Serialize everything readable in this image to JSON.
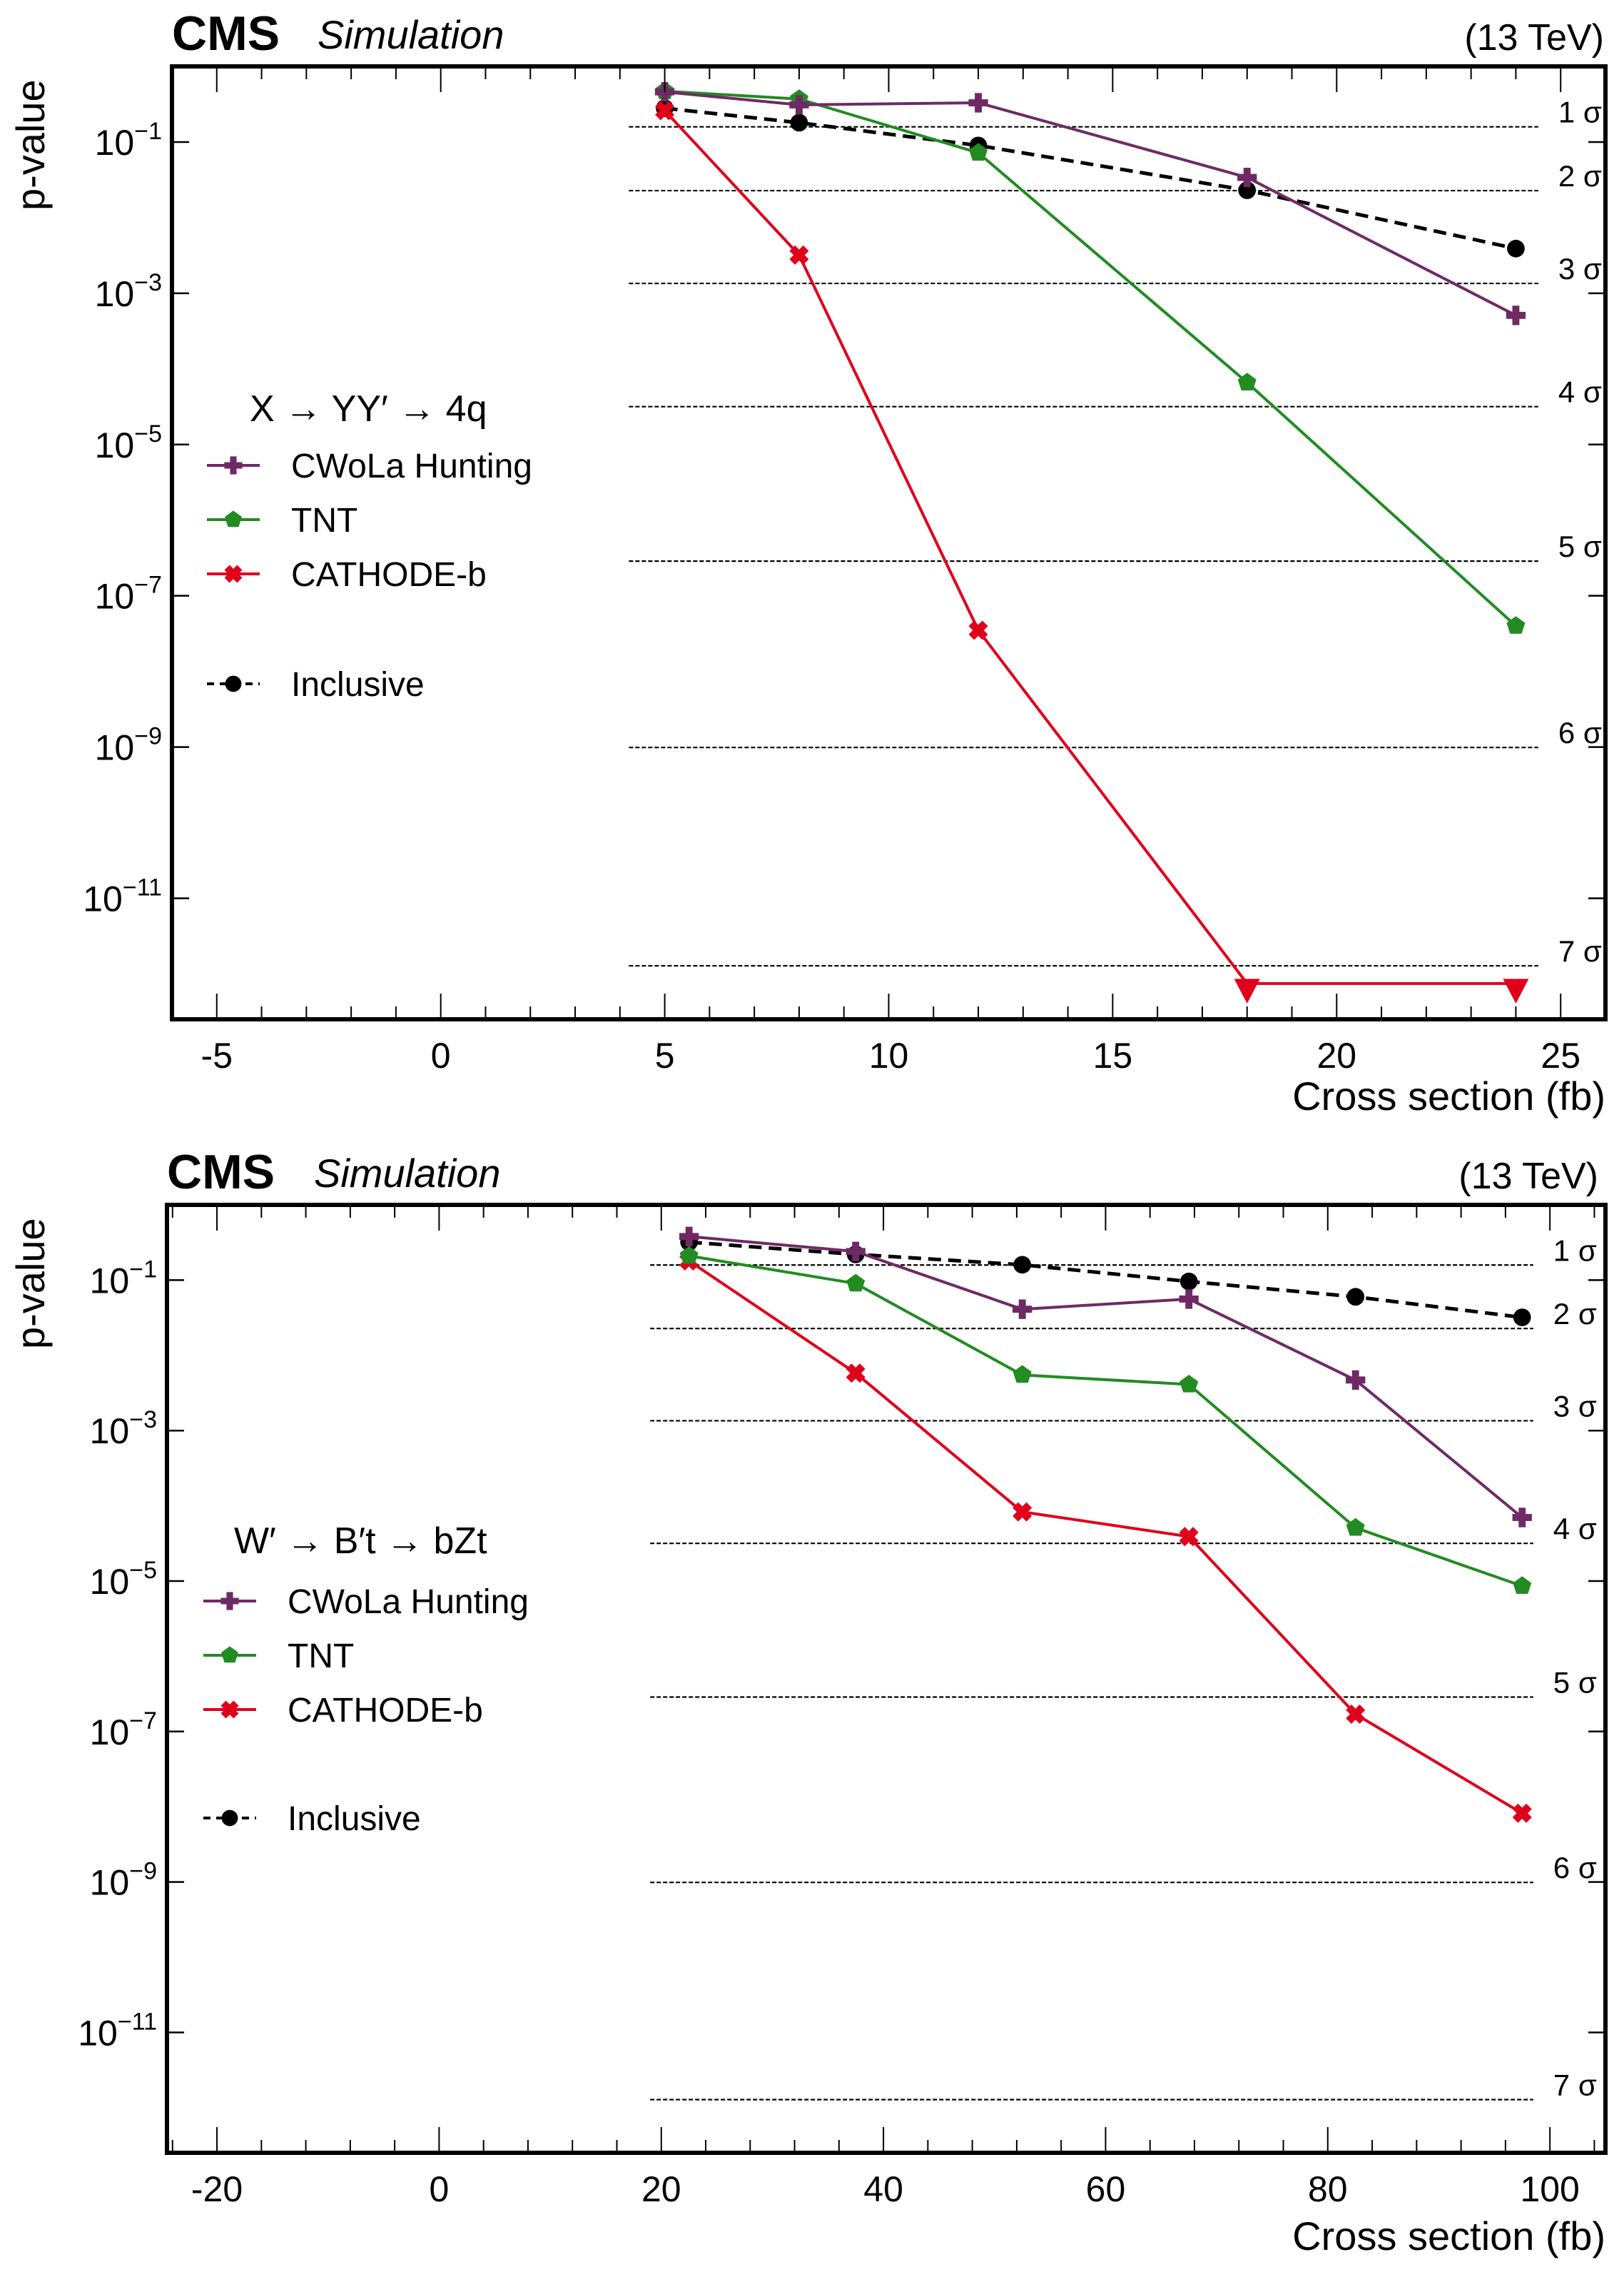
{
  "colors": {
    "cwola": "#6f2a65",
    "tnt": "#228b22",
    "cathode": "#e0001b",
    "inclusive": "#000000"
  },
  "chart_data": [
    {
      "type": "line",
      "header": {
        "experiment": "CMS",
        "label": "Simulation",
        "energy": "(13 TeV)"
      },
      "legend_title": "X → YY′ → 4q",
      "legend_placement": "center-left",
      "xlabel": "Cross section (fb)",
      "ylabel": "p-value",
      "yscale": "log",
      "xlim": [
        -6,
        26
      ],
      "ylim_log10": [
        -12.6,
        0.0
      ],
      "xticks": [
        -5,
        0,
        5,
        10,
        15,
        20,
        25
      ],
      "xtick_labels": [
        "-5",
        "0",
        "5",
        "10",
        "15",
        "20",
        "25"
      ],
      "yticks_log10": [
        -1,
        -3,
        -5,
        -7,
        -9,
        -11
      ],
      "ytick_labels": [
        {
          "base": "10",
          "exp": "−1"
        },
        {
          "base": "10",
          "exp": "−3"
        },
        {
          "base": "10",
          "exp": "−5"
        },
        {
          "base": "10",
          "exp": "−7"
        },
        {
          "base": "10",
          "exp": "−9"
        },
        {
          "base": "10",
          "exp": "−11"
        }
      ],
      "sigma_lines": [
        {
          "label": "1 σ",
          "p": 0.1587
        },
        {
          "label": "2 σ",
          "p": 0.02275
        },
        {
          "label": "3 σ",
          "p": 0.00135
        },
        {
          "label": "4 σ",
          "p": 3.17e-05
        },
        {
          "label": "5 σ",
          "p": 2.87e-07
        },
        {
          "label": "6 σ",
          "p": 9.87e-10
        },
        {
          "label": "7 σ",
          "p": 1.28e-12
        }
      ],
      "sigma_line_xrange": [
        4.2,
        24.5
      ],
      "series": [
        {
          "name": "CWoLa Hunting",
          "key": "cwola",
          "marker": "cross",
          "dashed": false,
          "x": [
            5,
            8,
            12,
            18,
            24
          ],
          "y": [
            0.46,
            0.31,
            0.33,
            0.034,
            0.00051
          ]
        },
        {
          "name": "TNT",
          "key": "tnt",
          "marker": "pentagon",
          "dashed": false,
          "x": [
            5,
            8,
            12,
            18,
            24
          ],
          "y": [
            0.47,
            0.37,
            0.072,
            6.6e-05,
            4e-08
          ]
        },
        {
          "name": "CATHODE-b",
          "key": "cathode",
          "marker": "x",
          "dashed": false,
          "x": [
            5,
            8,
            12
          ],
          "y": [
            0.26,
            0.0032,
            3.5e-08
          ],
          "upper_limits": {
            "x": [
              18,
              24
            ],
            "y": [
              6e-13,
              6e-13
            ]
          }
        },
        {
          "name": "Inclusive",
          "key": "inclusive",
          "marker": "circle",
          "dashed": true,
          "x": [
            5,
            8,
            12,
            18,
            24
          ],
          "y": [
            0.28,
            0.18,
            0.09,
            0.023,
            0.0039
          ]
        }
      ]
    },
    {
      "type": "line",
      "header": {
        "experiment": "CMS",
        "label": "Simulation",
        "energy": "(13 TeV)"
      },
      "legend_title": "W′ → B′t → bZt",
      "legend_placement": "center-left",
      "xlabel": "Cross section (fb)",
      "ylabel": "p-value",
      "yscale": "log",
      "xlim": [
        -24.5,
        105
      ],
      "ylim_log10": [
        -12.6,
        0.0
      ],
      "xticks": [
        -20,
        0,
        20,
        40,
        60,
        80,
        100
      ],
      "xtick_labels": [
        "-20",
        "0",
        "20",
        "40",
        "60",
        "80",
        "100"
      ],
      "yticks_log10": [
        -1,
        -3,
        -5,
        -7,
        -9,
        -11
      ],
      "ytick_labels": [
        {
          "base": "10",
          "exp": "−1"
        },
        {
          "base": "10",
          "exp": "−3"
        },
        {
          "base": "10",
          "exp": "−5"
        },
        {
          "base": "10",
          "exp": "−7"
        },
        {
          "base": "10",
          "exp": "−9"
        },
        {
          "base": "10",
          "exp": "−11"
        }
      ],
      "sigma_lines": [
        {
          "label": "1 σ",
          "p": 0.1587
        },
        {
          "label": "2 σ",
          "p": 0.02275
        },
        {
          "label": "3 σ",
          "p": 0.00135
        },
        {
          "label": "4 σ",
          "p": 3.17e-05
        },
        {
          "label": "5 σ",
          "p": 2.87e-07
        },
        {
          "label": "6 σ",
          "p": 9.87e-10
        },
        {
          "label": "7 σ",
          "p": 1.28e-12
        }
      ],
      "sigma_line_xrange": [
        19,
        98.5
      ],
      "series": [
        {
          "name": "CWoLa Hunting",
          "key": "cwola",
          "marker": "cross",
          "dashed": false,
          "x": [
            22.5,
            37.5,
            52.5,
            67.5,
            82.5,
            97.5
          ],
          "y": [
            0.38,
            0.24,
            0.041,
            0.056,
            0.0047,
            7e-05
          ]
        },
        {
          "name": "TNT",
          "key": "tnt",
          "marker": "pentagon",
          "dashed": false,
          "x": [
            22.5,
            37.5,
            52.5,
            67.5,
            82.5,
            97.5
          ],
          "y": [
            0.21,
            0.09,
            0.0055,
            0.0041,
            5.1e-05,
            8.6e-06
          ]
        },
        {
          "name": "CATHODE-b",
          "key": "cathode",
          "marker": "x",
          "dashed": false,
          "x": [
            22.5,
            37.5,
            52.5,
            67.5,
            82.5,
            97.5
          ],
          "y": [
            0.18,
            0.0058,
            8.3e-05,
            3.9e-05,
            1.7e-07,
            8.2e-09
          ]
        },
        {
          "name": "Inclusive",
          "key": "inclusive",
          "marker": "circle",
          "dashed": true,
          "x": [
            22.5,
            37.5,
            52.5,
            67.5,
            82.5,
            97.5
          ],
          "y": [
            0.32,
            0.22,
            0.16,
            0.096,
            0.06,
            0.032
          ]
        }
      ]
    }
  ]
}
